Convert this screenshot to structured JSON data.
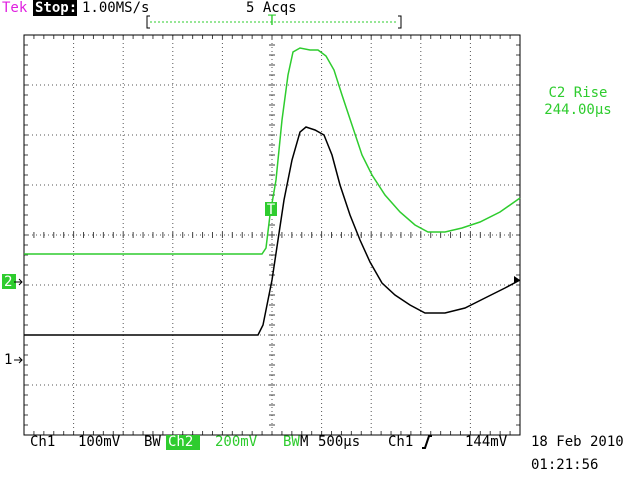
{
  "header": {
    "brand": "Tek",
    "status": "Stop:",
    "sample_rate": "1.00MS/s",
    "acquisitions": "5 Acqs",
    "trigger_position": "T"
  },
  "measurement": {
    "label": "C2 Rise",
    "value": "244.00µs"
  },
  "markers": {
    "ch1": "1",
    "ch2": "2",
    "trigger": "T"
  },
  "footer": {
    "ch1": {
      "label": "Ch1",
      "scale": "100mV",
      "bandwidth": "BW"
    },
    "ch2": {
      "label": "Ch2",
      "scale": "200mV",
      "bandwidth": "BW"
    },
    "timebase": {
      "label": "M",
      "scale": "500µs"
    },
    "trigger": {
      "source": "Ch1",
      "level": "144mV"
    },
    "date": "18 Feb 2010",
    "time": "01:21:56"
  }
}
